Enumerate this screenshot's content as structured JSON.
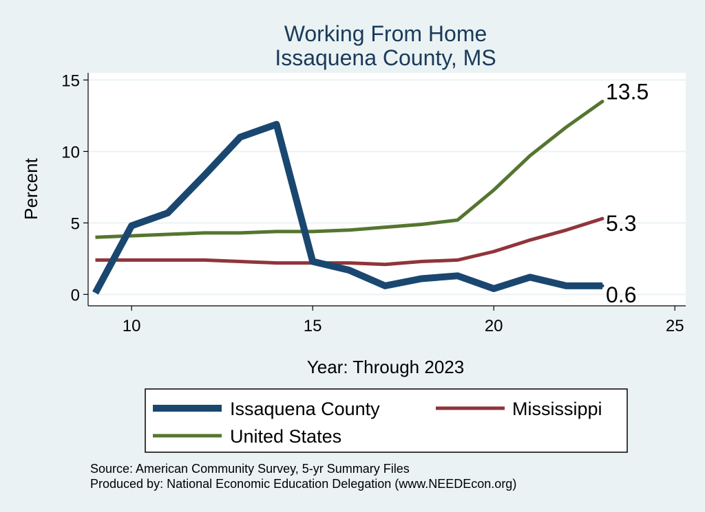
{
  "chart_data": {
    "type": "line",
    "title": "Working From Home",
    "subtitle": "Issaquena County, MS",
    "xlabel": "Year: Through 2023",
    "ylabel": "Percent",
    "xlim": [
      8.8,
      25.3
    ],
    "ylim": [
      -0.8,
      15.5
    ],
    "xticks": [
      10,
      15,
      20,
      25
    ],
    "yticks": [
      0,
      5,
      10,
      15
    ],
    "grid": true,
    "legend_position": "bottom",
    "series": [
      {
        "name": "Issaquena County",
        "color": "#1a476f",
        "x": [
          9,
          10,
          11,
          12,
          13,
          14,
          15,
          16,
          17,
          18,
          19,
          20,
          21,
          22,
          23
        ],
        "y": [
          0.1,
          4.8,
          5.7,
          8.3,
          11.0,
          11.9,
          2.3,
          1.7,
          0.6,
          1.1,
          1.3,
          0.4,
          1.2,
          0.6,
          0.6
        ],
        "end_label": "0.6"
      },
      {
        "name": "Mississippi",
        "color": "#90353b",
        "x": [
          9,
          10,
          11,
          12,
          13,
          14,
          15,
          16,
          17,
          18,
          19,
          20,
          21,
          22,
          23
        ],
        "y": [
          2.4,
          2.4,
          2.4,
          2.4,
          2.3,
          2.2,
          2.2,
          2.2,
          2.1,
          2.3,
          2.4,
          3.0,
          3.8,
          4.5,
          5.3
        ],
        "end_label": "5.3"
      },
      {
        "name": "United States",
        "color": "#55752f",
        "x": [
          9,
          10,
          11,
          12,
          13,
          14,
          15,
          16,
          17,
          18,
          19,
          20,
          21,
          22,
          23
        ],
        "y": [
          4.0,
          4.1,
          4.2,
          4.3,
          4.3,
          4.4,
          4.4,
          4.5,
          4.7,
          4.9,
          5.2,
          7.3,
          9.7,
          11.7,
          13.5
        ],
        "end_label": "13.5"
      }
    ],
    "source_lines": [
      "Source: American Community Survey, 5-yr Summary Files",
      "Produced by: National Economic Education Delegation (www.NEEDEcon.org)"
    ]
  }
}
